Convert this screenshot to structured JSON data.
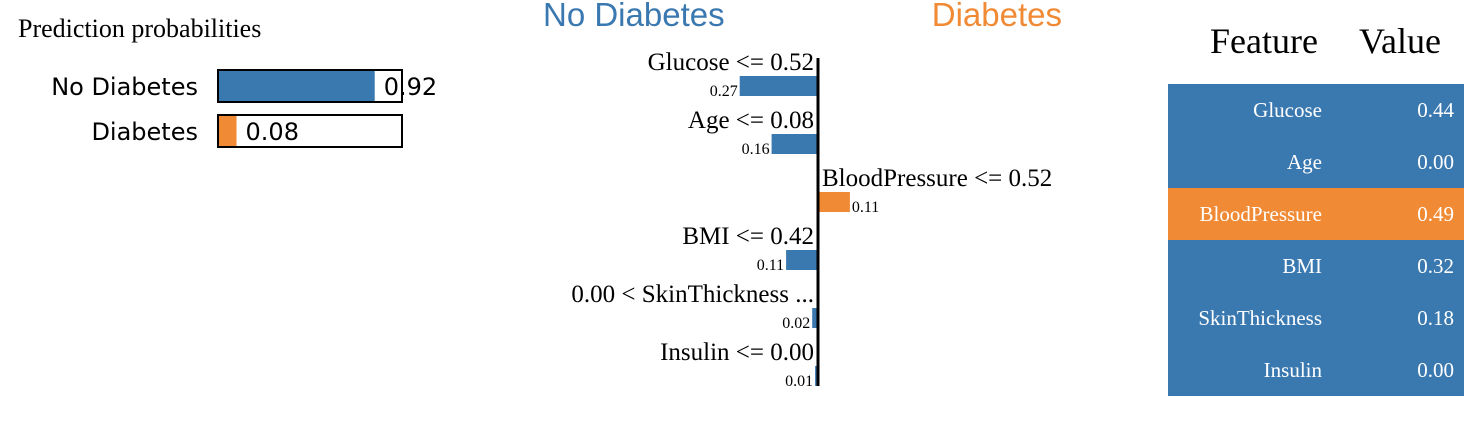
{
  "probabilities": {
    "title": "Prediction probabilities",
    "items": [
      {
        "label": "No Diabetes",
        "value": 0.92,
        "value_text": "0.92",
        "color": "#3A78B0"
      },
      {
        "label": "Diabetes",
        "value": 0.08,
        "value_text": "0.08",
        "color": "#F08A35"
      }
    ]
  },
  "explanation": {
    "left_class": "No Diabetes",
    "right_class": "Diabetes",
    "left_color": "#3A78B0",
    "right_color": "#F08A35"
  },
  "chart_data": {
    "type": "bar",
    "orientation": "diverging-horizontal",
    "categories": [
      "Glucose <= 0.52",
      "Age <= 0.08",
      "BloodPressure <= 0.52",
      "BMI <= 0.42",
      "0.00 < SkinThickness ...",
      "Insulin <= 0.00"
    ],
    "values": [
      -0.27,
      -0.16,
      0.11,
      -0.11,
      -0.02,
      -0.01
    ],
    "value_labels": [
      "0.27",
      "0.16",
      "0.11",
      "0.11",
      "0.02",
      "0.01"
    ],
    "title": "",
    "xlabel": "",
    "ylabel": ""
  },
  "feature_table": {
    "headers": [
      "Feature",
      "Value"
    ],
    "rows": [
      {
        "feature": "Glucose",
        "value": "0.44",
        "highlight": false
      },
      {
        "feature": "Age",
        "value": "0.00",
        "highlight": false
      },
      {
        "feature": "BloodPressure",
        "value": "0.49",
        "highlight": true
      },
      {
        "feature": "BMI",
        "value": "0.32",
        "highlight": false
      },
      {
        "feature": "SkinThickness",
        "value": "0.18",
        "highlight": false
      },
      {
        "feature": "Insulin",
        "value": "0.00",
        "highlight": false
      }
    ],
    "row_color": "#3A78B0",
    "highlight_color": "#F08A35"
  }
}
